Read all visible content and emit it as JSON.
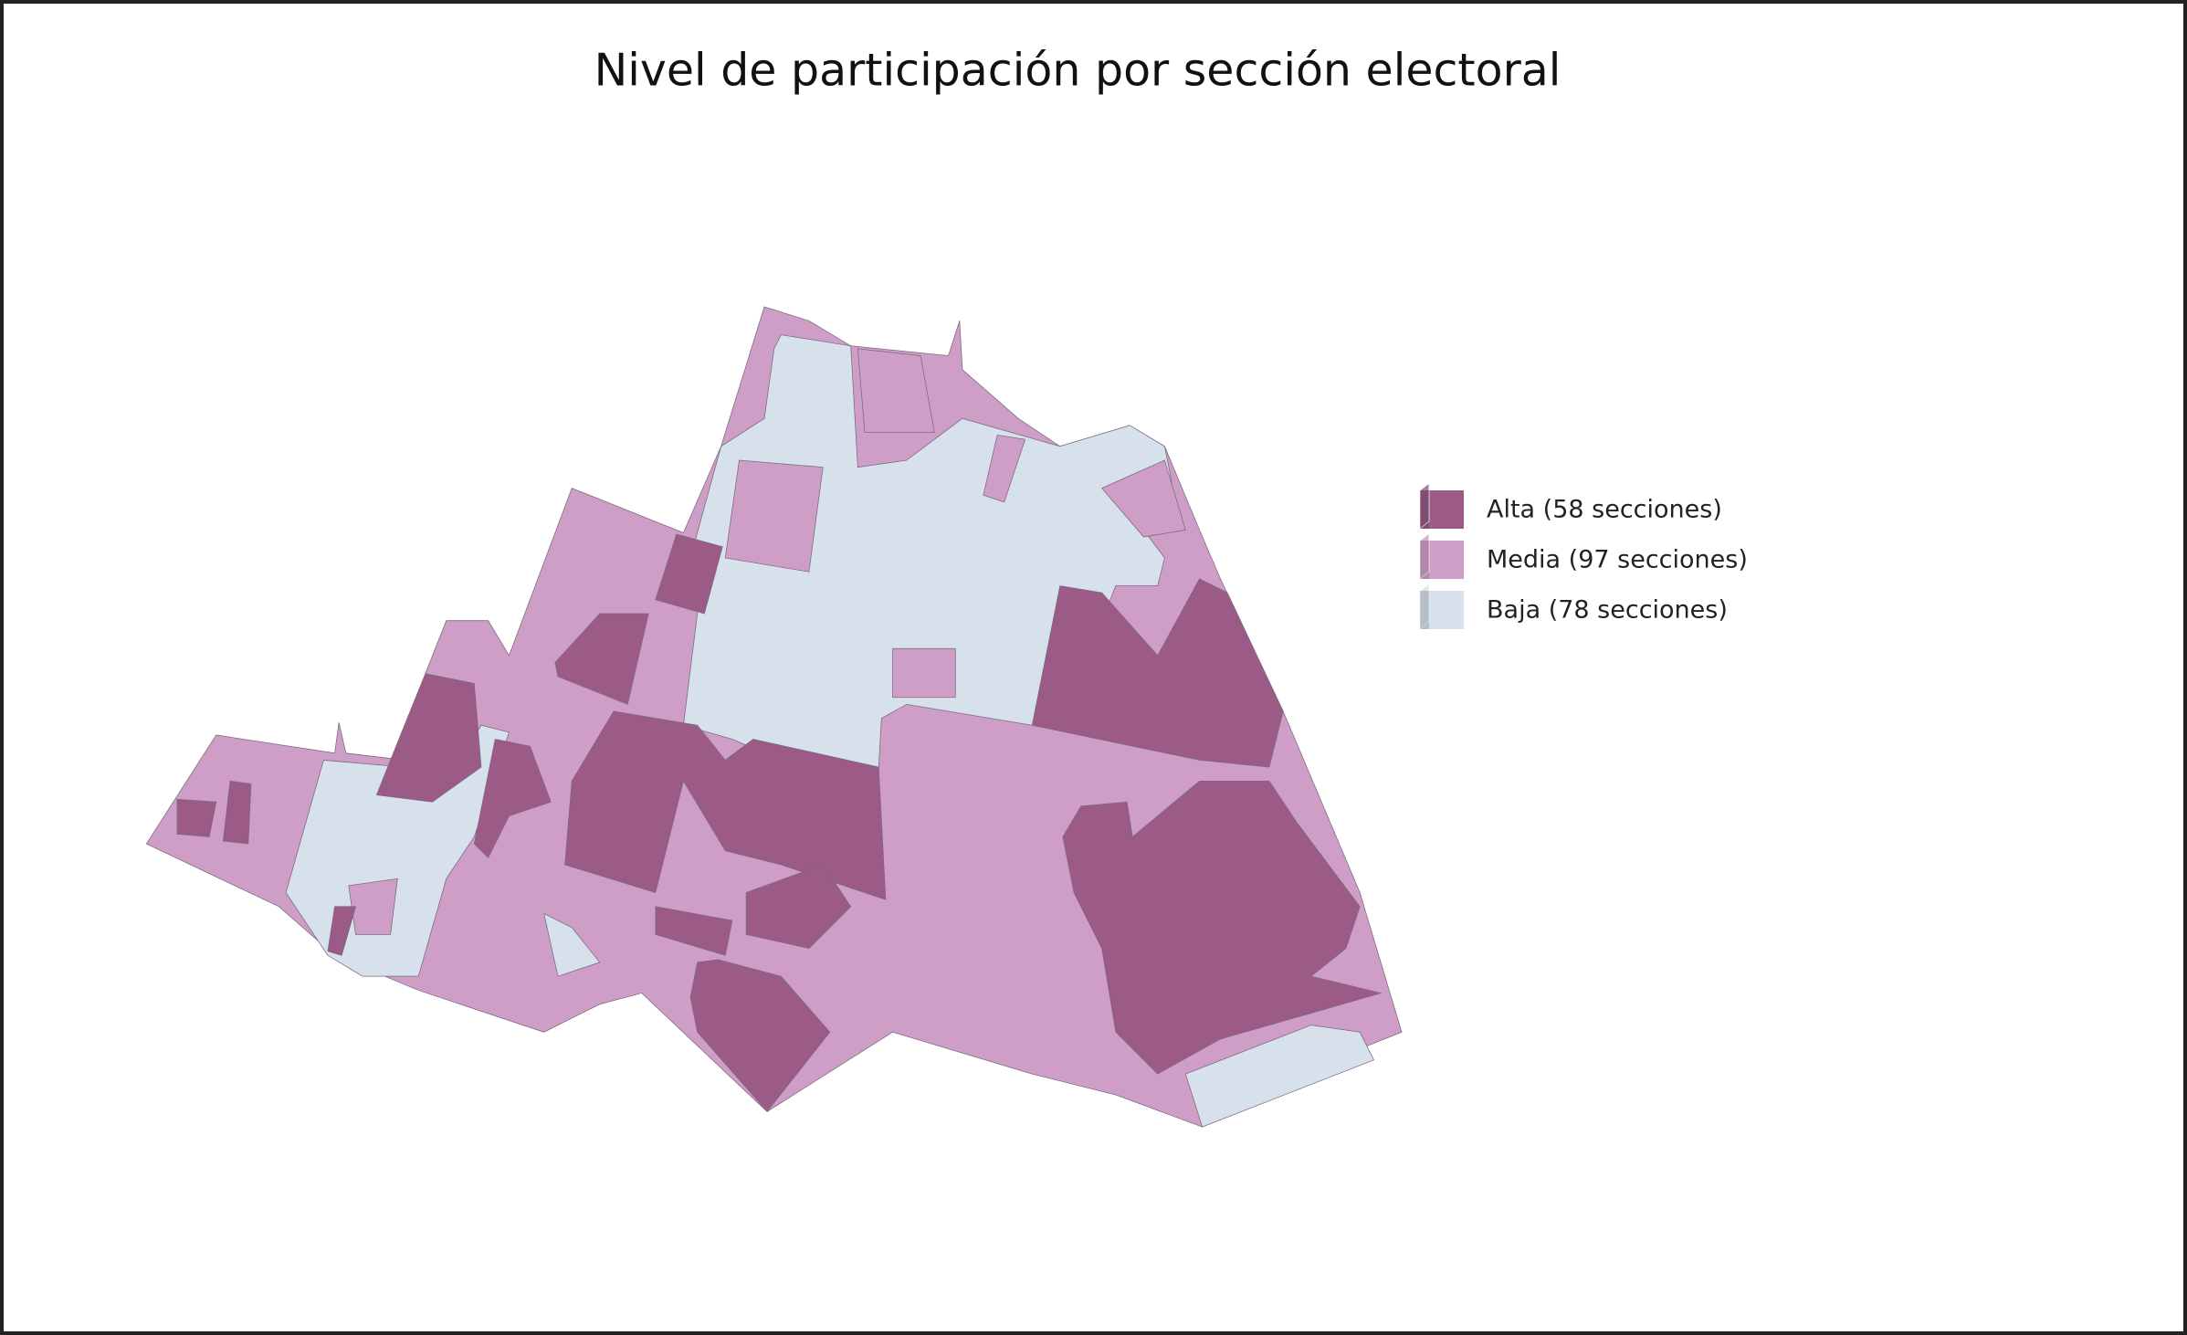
{
  "title": "Nivel de participación por sección electoral",
  "legend": [
    {
      "label": "Alta (58 secciones)",
      "color": "#9b5b86"
    },
    {
      "label": "Media (97 secciones)",
      "color": "#cf9ec7"
    },
    {
      "label": "Baja (78 secciones)",
      "color": "#d6e1eb"
    }
  ]
}
